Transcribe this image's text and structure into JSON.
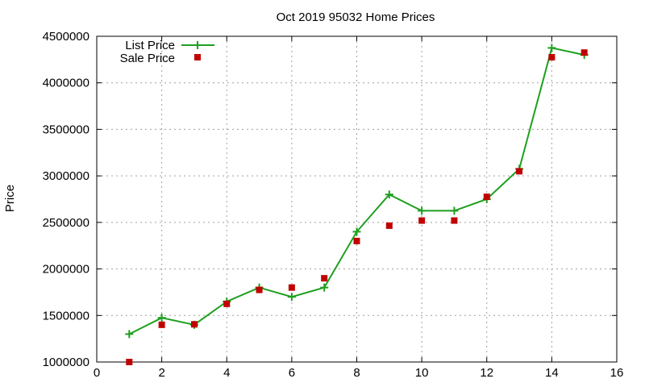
{
  "chart_data": {
    "type": "line",
    "title": "Oct 2019 95032 Home Prices",
    "xlabel": "",
    "ylabel": "Price",
    "xlim": [
      0,
      16
    ],
    "ylim": [
      1000000,
      4500000
    ],
    "x_ticks": [
      0,
      2,
      4,
      6,
      8,
      10,
      12,
      14,
      16
    ],
    "y_ticks": [
      1000000,
      1500000,
      2000000,
      2500000,
      3000000,
      3500000,
      4000000,
      4500000
    ],
    "grid": true,
    "legend_position": "top-left",
    "series": [
      {
        "name": "List Price",
        "style": "line-with-plus-markers",
        "color": "#1ea01e",
        "x": [
          1,
          2,
          3,
          4,
          5,
          6,
          7,
          8,
          9,
          10,
          11,
          12,
          13,
          14,
          15
        ],
        "values": [
          1300000,
          1475000,
          1400000,
          1650000,
          1800000,
          1700000,
          1800000,
          2400000,
          2800000,
          2625000,
          2625000,
          2750000,
          3075000,
          4375000,
          4300000
        ]
      },
      {
        "name": "Sale Price",
        "style": "square-points",
        "color": "#c00000",
        "x": [
          1,
          2,
          3,
          4,
          5,
          6,
          7,
          8,
          9,
          10,
          11,
          12,
          13,
          14,
          15
        ],
        "values": [
          1000000,
          1400000,
          1405000,
          1625000,
          1775000,
          1800000,
          1900000,
          2300000,
          2465000,
          2520000,
          2520000,
          2775000,
          3050000,
          4275000,
          4325000
        ]
      }
    ]
  }
}
